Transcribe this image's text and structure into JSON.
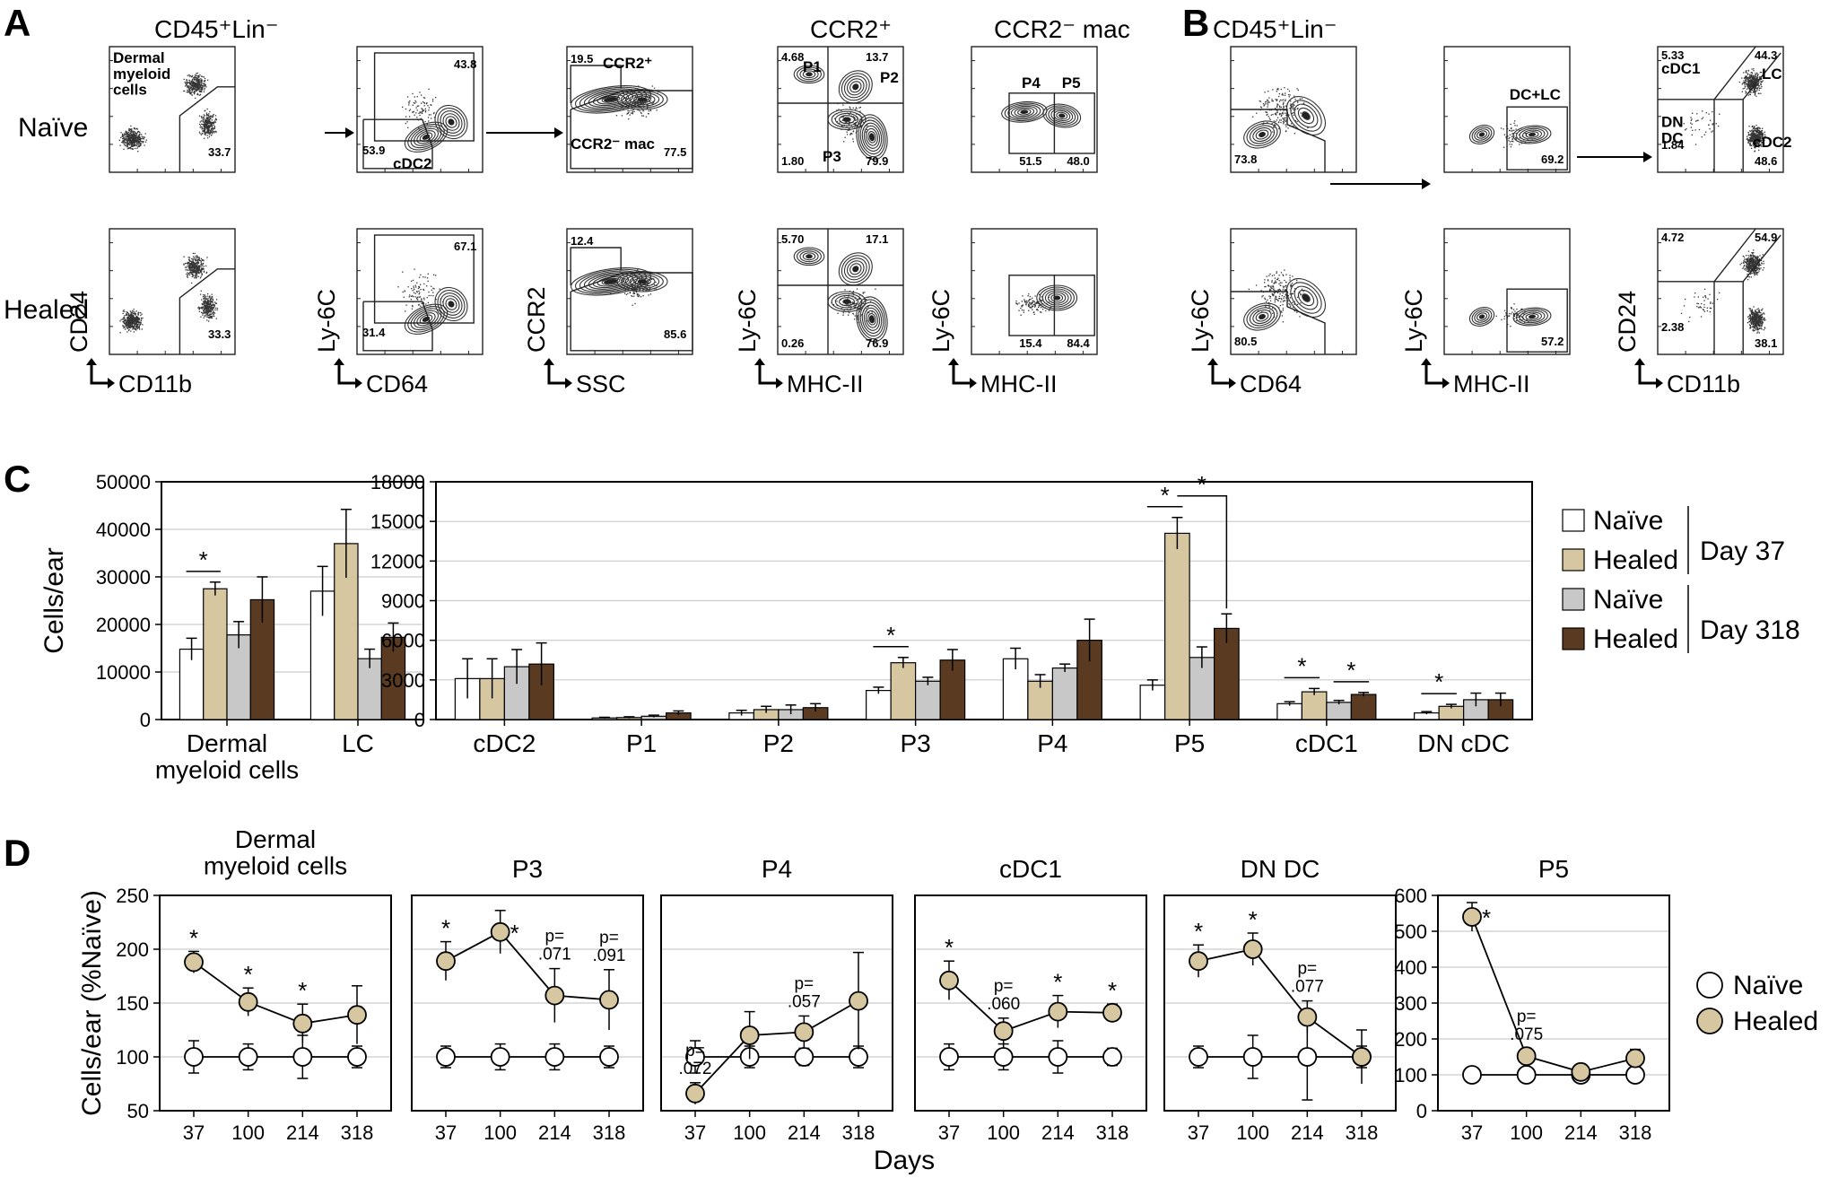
{
  "colors": {
    "naive_37": "#ffffff",
    "healed_37": "#d7c7a0",
    "naive_318": "#c8c8c8",
    "healed_318": "#5a3b22",
    "naive_line": "#ffffff",
    "healed_line": "#d7c7a0"
  },
  "panel_labels": {
    "A": "A",
    "B": "B",
    "C": "C",
    "D": "D"
  },
  "panel_a": {
    "row_labels": [
      "Naïve",
      "Healed"
    ],
    "plots": [
      {
        "title": "CD45⁺Lin⁻",
        "x_label": "CD11b",
        "y_label": "CD24",
        "gate_label": "Dermal\nmyeloid\ncells",
        "naive_values": [
          "33.7"
        ],
        "healed_values": [
          "33.3"
        ]
      },
      {
        "title": "",
        "x_label": "CD64",
        "y_label": "Ly-6C",
        "gate_label": "cDC2",
        "naive_values": [
          "43.8",
          "53.9"
        ],
        "healed_values": [
          "67.1",
          "31.4"
        ]
      },
      {
        "title": "",
        "x_label": "SSC",
        "y_label": "CCR2",
        "gate_label": "CCR2⁻ mac",
        "gate_label2": "CCR2⁺",
        "naive_values": [
          "19.5",
          "77.5"
        ],
        "healed_values": [
          "12.4",
          "85.6"
        ]
      },
      {
        "title": "CCR2⁺",
        "x_label": "MHC-II",
        "y_label": "Ly-6C",
        "quad_labels": [
          "P1",
          "P2",
          "P3"
        ],
        "naive_values": [
          "4.68",
          "13.7",
          "1.80",
          "79.9"
        ],
        "healed_values": [
          "5.70",
          "17.1",
          "0.26",
          "76.9"
        ]
      },
      {
        "title": "CCR2⁻ mac",
        "x_label": "MHC-II",
        "y_label": "Ly-6C",
        "quad_labels": [
          "P4",
          "P5"
        ],
        "naive_values": [
          "51.5",
          "48.0"
        ],
        "healed_values": [
          "15.4",
          "84.4"
        ]
      }
    ]
  },
  "panel_b": {
    "plots": [
      {
        "title": "CD45⁺Lin⁻",
        "x_label": "CD64",
        "y_label": "Ly-6C",
        "naive_values": [
          "73.8"
        ],
        "healed_values": [
          "80.5"
        ]
      },
      {
        "title": "",
        "x_label": "MHC-II",
        "y_label": "Ly-6C",
        "gate_label": "DC+LC",
        "naive_values": [
          "69.2"
        ],
        "healed_values": [
          "57.2"
        ]
      },
      {
        "title": "",
        "x_label": "CD11b",
        "y_label": "CD24",
        "gate_labels": [
          "cDC1",
          "LC",
          "DN\nDC",
          "cDC2"
        ],
        "naive_values": [
          "5.33",
          "44.3",
          "1.84",
          "48.6"
        ],
        "healed_values": [
          "4.72",
          "54.9",
          "2.38",
          "38.1"
        ]
      }
    ]
  },
  "chart_data": [
    {
      "type": "bar",
      "panel": "C-left",
      "ylabel": "Cells/ear",
      "ylim": [
        0,
        50000
      ],
      "yticks": [
        "0",
        "10000",
        "20000",
        "30000",
        "40000",
        "50000"
      ],
      "categories": [
        "Dermal\nmyeloid cells",
        "LC"
      ],
      "series": [
        {
          "name": "Naïve Day 37",
          "values": [
            14800,
            27000
          ],
          "err": [
            2300,
            5200
          ]
        },
        {
          "name": "Healed Day 37",
          "values": [
            27500,
            37000
          ],
          "err": [
            1400,
            7200
          ]
        },
        {
          "name": "Naïve Day 318",
          "values": [
            17800,
            12800
          ],
          "err": [
            2800,
            2000
          ]
        },
        {
          "name": "Healed Day 318",
          "values": [
            25200,
            17300
          ],
          "err": [
            4800,
            3000
          ]
        }
      ],
      "significance": [
        {
          "category": "Dermal\nmyeloid cells",
          "label": "*"
        }
      ]
    },
    {
      "type": "bar",
      "panel": "C-right",
      "ylim": [
        0,
        18000
      ],
      "yticks": [
        "0",
        "3000",
        "6000",
        "9000",
        "12000",
        "15000",
        "18000"
      ],
      "categories": [
        "cDC2",
        "P1",
        "P2",
        "P3",
        "P4",
        "P5",
        "cDC1",
        "DN cDC"
      ],
      "series": [
        {
          "name": "Naïve Day 37",
          "values": [
            3100,
            120,
            500,
            2200,
            4600,
            2600,
            1200,
            500
          ],
          "err": [
            1500,
            50,
            200,
            250,
            800,
            400,
            150,
            100
          ]
        },
        {
          "name": "Healed Day 37",
          "values": [
            3100,
            150,
            750,
            4300,
            2900,
            14100,
            2100,
            1000
          ],
          "err": [
            1500,
            60,
            250,
            400,
            500,
            1200,
            250,
            150
          ]
        },
        {
          "name": "Naïve Day 318",
          "values": [
            4000,
            250,
            750,
            2900,
            3900,
            4700,
            1300,
            1500
          ],
          "err": [
            1300,
            80,
            350,
            300,
            300,
            800,
            150,
            500
          ]
        },
        {
          "name": "Healed Day 318",
          "values": [
            4200,
            500,
            900,
            4500,
            6000,
            6900,
            1900,
            1500
          ],
          "err": [
            1600,
            150,
            300,
            800,
            1600,
            1100,
            150,
            500
          ]
        }
      ],
      "significance": [
        {
          "category": "P3",
          "label": "*"
        },
        {
          "category": "P5",
          "label": "*"
        },
        {
          "category": "P5",
          "label": "*"
        },
        {
          "category": "cDC1",
          "label": "*"
        },
        {
          "category": "cDC1",
          "label": "*"
        },
        {
          "category": "DN cDC",
          "label": "*"
        }
      ]
    },
    {
      "type": "line",
      "panel": "D",
      "ylabel": "Cells/ear (%Naïve)",
      "xlabel": "Days",
      "x": [
        "37",
        "100",
        "214",
        "318"
      ],
      "subplots": [
        {
          "title": "Dermal\nmyeloid cells",
          "ylim": [
            50,
            250
          ],
          "yticks": [
            "50",
            "100",
            "150",
            "200",
            "250"
          ],
          "naive": [
            100,
            100,
            100,
            100
          ],
          "naive_err": [
            15,
            12,
            20,
            10
          ],
          "healed": [
            188,
            151,
            131,
            139
          ],
          "healed_err": [
            10,
            13,
            18,
            27
          ],
          "annotations": [
            "*",
            "*",
            "*",
            ""
          ]
        },
        {
          "title": "P3",
          "ylim": [
            50,
            250
          ],
          "yticks": [],
          "naive": [
            100,
            100,
            100,
            100
          ],
          "naive_err": [
            10,
            12,
            12,
            10
          ],
          "healed": [
            189,
            216,
            157,
            153
          ],
          "healed_err": [
            18,
            20,
            25,
            28
          ],
          "annotations": [
            "*",
            "*",
            "p=\n.071",
            "p=\n.091"
          ]
        },
        {
          "title": "P4",
          "ylim": [
            50,
            250
          ],
          "yticks": [],
          "naive": [
            100,
            100,
            100,
            100
          ],
          "naive_err": [
            15,
            10,
            8,
            10
          ],
          "healed": [
            66,
            120,
            123,
            152
          ],
          "healed_err": [
            10,
            22,
            15,
            45
          ],
          "annotations": [
            "p=\n.072",
            "",
            "p=\n.057",
            ""
          ]
        },
        {
          "title": "cDC1",
          "ylim": [
            50,
            250
          ],
          "yticks": [],
          "naive": [
            100,
            100,
            100,
            100
          ],
          "naive_err": [
            12,
            12,
            15,
            8
          ],
          "healed": [
            171,
            124,
            142,
            141
          ],
          "healed_err": [
            18,
            12,
            15,
            8
          ],
          "annotations": [
            "*",
            "p=\n.060",
            "*",
            "*"
          ]
        },
        {
          "title": "DN DC",
          "ylim": [
            50,
            250
          ],
          "yticks": [],
          "naive": [
            100,
            100,
            100,
            100
          ],
          "naive_err": [
            10,
            20,
            40,
            10
          ],
          "healed": [
            189,
            200,
            137,
            100
          ],
          "healed_err": [
            15,
            15,
            15,
            25
          ],
          "annotations": [
            "*",
            "*",
            "p=\n.077",
            ""
          ]
        },
        {
          "title": "P5",
          "ylim": [
            0,
            600
          ],
          "yticks": [
            "0",
            "100",
            "200",
            "300",
            "400",
            "500",
            "600"
          ],
          "naive": [
            100,
            100,
            100,
            100
          ],
          "naive_err": [
            10,
            20,
            20,
            10
          ],
          "healed": [
            540,
            152,
            108,
            146
          ],
          "healed_err": [
            40,
            20,
            20,
            25
          ],
          "annotations": [
            "*",
            "p=\n.075",
            "",
            ""
          ]
        }
      ]
    }
  ],
  "legend_c": {
    "naive": "Naïve",
    "healed": "Healed",
    "day37": "Day 37",
    "day318": "Day 318"
  },
  "legend_d": {
    "naive": "Naïve",
    "healed": "Healed"
  }
}
